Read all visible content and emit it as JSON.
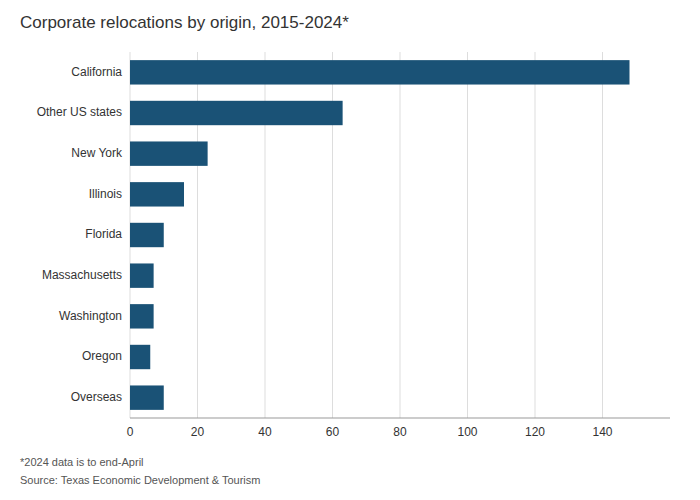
{
  "chart_data": {
    "type": "bar",
    "orientation": "horizontal",
    "title": "Corporate relocations by origin, 2015-2024*",
    "categories": [
      "California",
      "Other US states",
      "New York",
      "Illinois",
      "Florida",
      "Massachusetts",
      "Washington",
      "Oregon",
      "Overseas"
    ],
    "values": [
      148,
      63,
      23,
      16,
      10,
      7,
      7,
      6,
      10
    ],
    "color": "#1a5276",
    "xlim": [
      0,
      160
    ],
    "xticks": [
      0,
      20,
      40,
      60,
      80,
      100,
      120,
      140
    ],
    "grid": true,
    "annotations": [
      "*2024 data is to end-April",
      "Source: Texas Economic Development & Tourism"
    ]
  }
}
